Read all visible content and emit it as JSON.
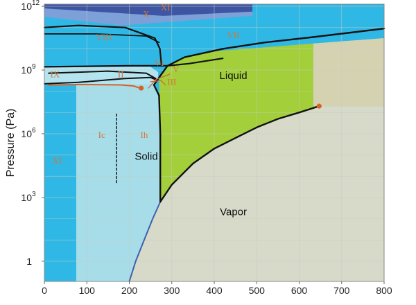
{
  "chart_data": {
    "type": "phase-diagram",
    "xlabel": "",
    "ylabel": "Pressure (Pa)",
    "xlim": [
      0,
      800
    ],
    "x_ticks": [
      "0",
      "100",
      "200",
      "300",
      "400",
      "500",
      "600",
      "700",
      "800"
    ],
    "y_scale": "log",
    "y_ticks": [
      {
        "exp": 0,
        "label": "1"
      },
      {
        "exp": 3,
        "label": "10",
        "sup": "3"
      },
      {
        "exp": 6,
        "label": "10",
        "sup": "6"
      },
      {
        "exp": 9,
        "label": "10",
        "sup": "9"
      },
      {
        "exp": 12,
        "label": "10",
        "sup": "12"
      }
    ],
    "grid": true,
    "regions": [
      {
        "name": "XI",
        "style": "serif",
        "x": 30,
        "logp": 4.7
      },
      {
        "name": "Ic",
        "style": "serif",
        "x": 135,
        "logp": 5.9
      },
      {
        "name": "Ih",
        "style": "serif",
        "x": 235,
        "logp": 5.9
      },
      {
        "name": "Solid",
        "style": "sans",
        "x": 240,
        "logp": 4.9
      },
      {
        "name": "Liquid",
        "style": "sans",
        "x": 445,
        "logp": 8.7
      },
      {
        "name": "Vapor",
        "style": "sans",
        "x": 445,
        "logp": 2.3
      },
      {
        "name": "VII",
        "style": "serif",
        "x": 445,
        "logp": 10.6
      },
      {
        "name": "VIII",
        "style": "serif",
        "x": 140,
        "logp": 10.5
      },
      {
        "name": "X",
        "style": "serif",
        "x": 240,
        "logp": 11.6
      },
      {
        "name": "XI",
        "style": "serif",
        "x": 285,
        "logp": 11.9
      },
      {
        "name": "IX",
        "style": "serif",
        "x": 25,
        "logp": 8.75
      },
      {
        "name": "II",
        "style": "serif",
        "x": 180,
        "logp": 8.75
      },
      {
        "name": "VI",
        "style": "serif",
        "x": 270,
        "logp": 9.3
      },
      {
        "name": "V",
        "style": "serif",
        "x": 310,
        "logp": 9.0
      },
      {
        "name": "III",
        "style": "serif",
        "x": 300,
        "logp": 8.4
      }
    ],
    "points": [
      {
        "x": 228,
        "logp": 8.15,
        "label": ""
      },
      {
        "x": 647,
        "logp": 7.3,
        "label": ""
      }
    ],
    "colors": {
      "xi_band": "#2fb8e5",
      "ice_ic": "#a6dde9",
      "dark_blue": "#3d55a3",
      "mid_blue": "#7da0d8",
      "liquid_green": "#a3cf3a",
      "vapor": "#d7dac9",
      "supercritical": "#d5d2b1",
      "grid": "#c7cbc3",
      "boundary": "#111111",
      "orange": "#d6622a",
      "blue_line": "#3f5fb0"
    }
  }
}
